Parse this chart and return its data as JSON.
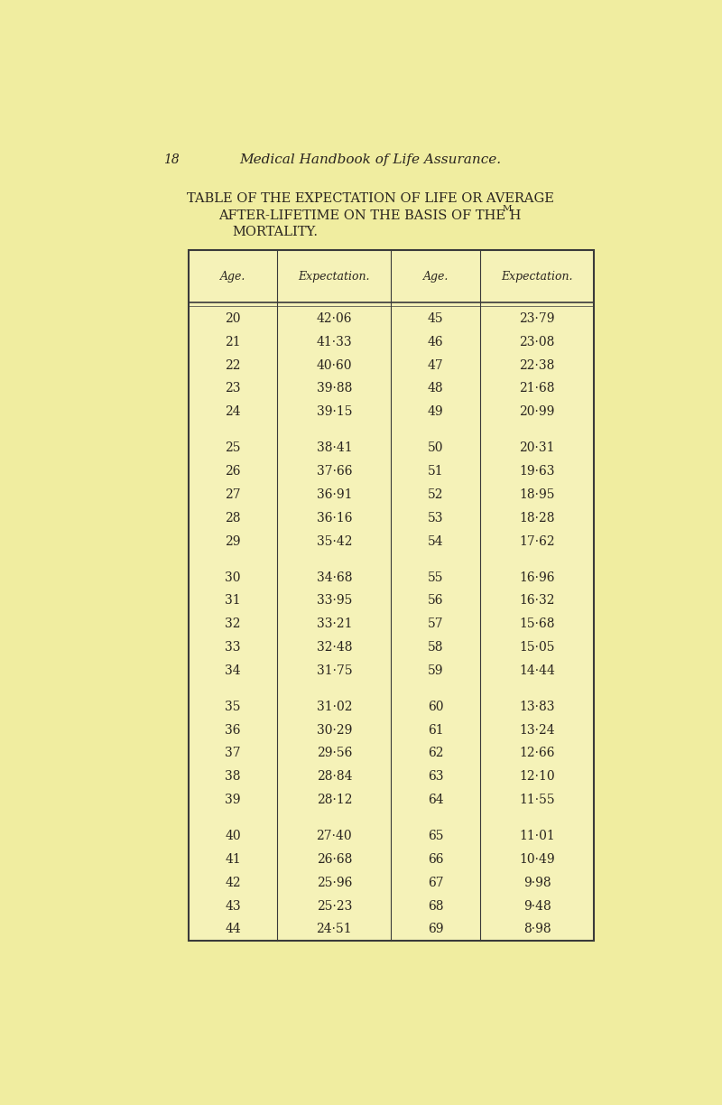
{
  "page_number": "18",
  "header_line1": "Medical Handbook of Life Assurance.",
  "title_line1": "TABLE OF THE EXPECTATION OF LIFE OR AVERAGE",
  "title_line2": "AFTER-LIFETIME ON THE BASIS OF THE H",
  "title_line2_super": "M",
  "title_line3": "MORTALITY.",
  "col_headers": [
    "Age.",
    "Expectation.",
    "Age.",
    "Expectation."
  ],
  "left_ages": [
    20,
    21,
    22,
    23,
    24,
    25,
    26,
    27,
    28,
    29,
    30,
    31,
    32,
    33,
    34,
    35,
    36,
    37,
    38,
    39,
    40,
    41,
    42,
    43,
    44
  ],
  "left_exp": [
    "42·06",
    "41·33",
    "40·60",
    "39·88",
    "39·15",
    "38·41",
    "37·66",
    "36·91",
    "36·16",
    "35·42",
    "34·68",
    "33·95",
    "33·21",
    "32·48",
    "31·75",
    "31·02",
    "30·29",
    "29·56",
    "28·84",
    "28·12",
    "27·40",
    "26·68",
    "25·96",
    "25·23",
    "24·51"
  ],
  "right_ages": [
    45,
    46,
    47,
    48,
    49,
    50,
    51,
    52,
    53,
    54,
    55,
    56,
    57,
    58,
    59,
    60,
    61,
    62,
    63,
    64,
    65,
    66,
    67,
    68,
    69
  ],
  "right_exp": [
    "23·79",
    "23·08",
    "22·38",
    "21·68",
    "20·99",
    "20·31",
    "19·63",
    "18·95",
    "18·28",
    "17·62",
    "16·96",
    "16·32",
    "15·68",
    "15·05",
    "14·44",
    "13·83",
    "13·24",
    "12·66",
    "12·10",
    "11·55",
    "11·01",
    "10·49",
    "9·98",
    "9·48",
    "8·98"
  ],
  "bg_color": "#f0eda0",
  "table_bg": "#f5f2b8",
  "border_color": "#3a3a3a",
  "text_color": "#2a2520",
  "header_color": "#2a2520"
}
